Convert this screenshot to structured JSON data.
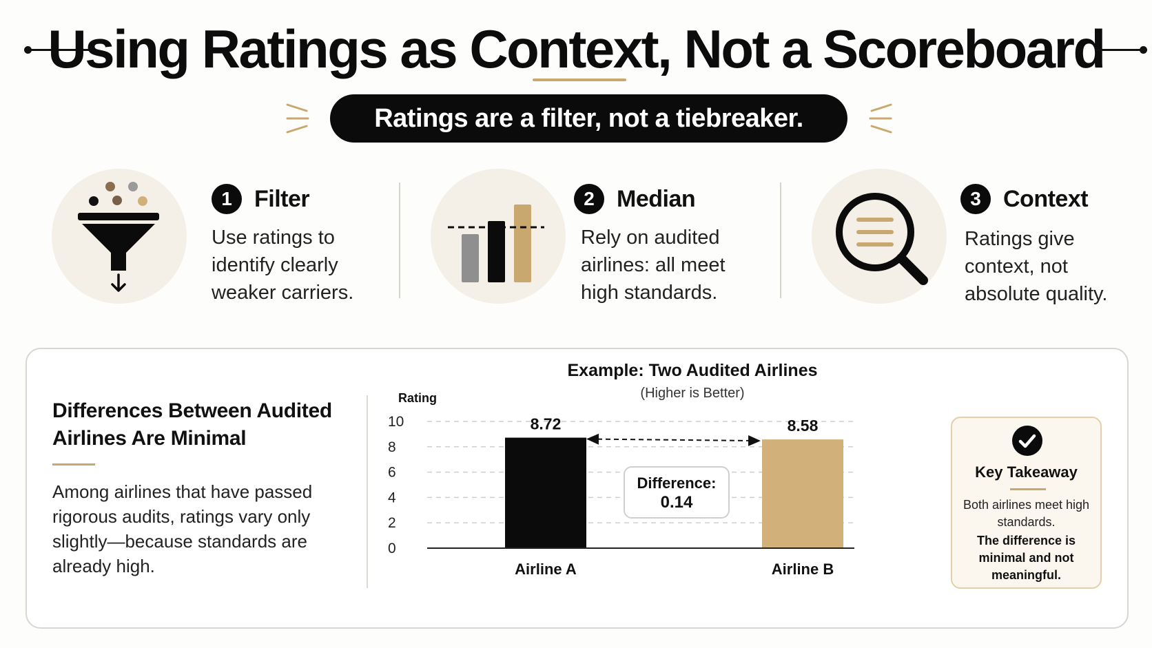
{
  "header": {
    "title": "Using Ratings as Context, Not a Scoreboard",
    "tagline": "Ratings are a filter, not a tiebreaker."
  },
  "principles": [
    {
      "number": "1",
      "title": "Filter",
      "text": "Use ratings to identify clearly weaker carriers.",
      "icon": "funnel-icon"
    },
    {
      "number": "2",
      "title": "Median",
      "text": "Rely on audited airlines: all meet high standards.",
      "icon": "bar-chart-median-icon"
    },
    {
      "number": "3",
      "title": "Context",
      "text": "Ratings give context, not absolute quality.",
      "icon": "magnifier-icon"
    }
  ],
  "explanation": {
    "title": "Differences Between Audited Airlines Are Minimal",
    "text": "Among airlines that have passed rigorous audits, ratings vary only slightly—because standards are already high."
  },
  "colors": {
    "accent": "#c9a86f",
    "airline_a": "#0b0b0b",
    "airline_b": "#d2b07a",
    "soft_circle": "#f5f0e7"
  },
  "chart_data": {
    "type": "bar",
    "title": "Example: Two Audited Airlines",
    "subtitle": "(Higher is Better)",
    "ylabel": "Rating",
    "xlabel": "",
    "categories": [
      "Airline A",
      "Airline B"
    ],
    "values": [
      8.72,
      8.58
    ],
    "value_labels": [
      "8.72",
      "8.58"
    ],
    "ylim": [
      0,
      10
    ],
    "yticks": [
      0,
      2,
      4,
      6,
      8,
      10
    ],
    "grid": true,
    "annotation": {
      "label": "Difference:",
      "value": "0.14"
    }
  },
  "takeaway": {
    "title": "Key Takeaway",
    "text": "Both airlines meet high standards.",
    "emphasis": "The difference is minimal and not meaningful."
  }
}
